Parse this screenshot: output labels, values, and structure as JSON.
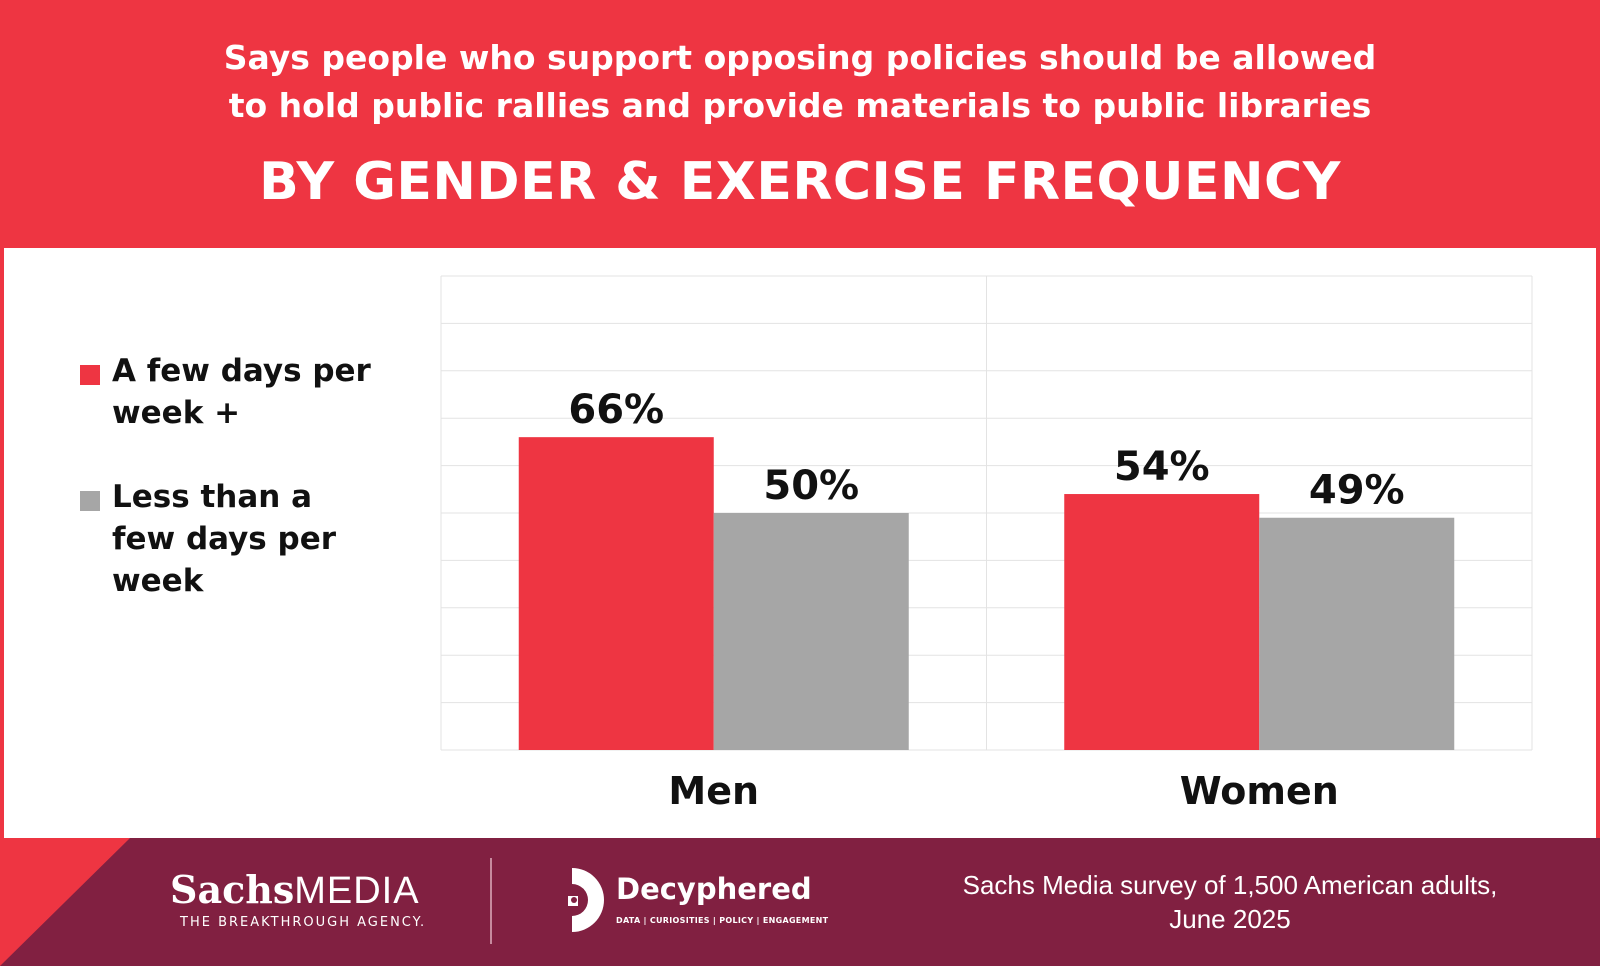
{
  "header": {
    "subtitle_line1": "Says people who support opposing policies should be allowed",
    "subtitle_line2": "to hold public rallies and provide materials to public libraries",
    "title": "BY GENDER & EXERCISE FREQUENCY"
  },
  "colors": {
    "accent_red": "#ee3542",
    "series_gray": "#a6a6a6",
    "footer_maroon": "#812041"
  },
  "legend": {
    "items": [
      {
        "label_lines": [
          "A few days per",
          "week +"
        ],
        "color": "#ee3542"
      },
      {
        "label_lines": [
          "Less than a",
          "few days per",
          "week"
        ],
        "color": "#a6a6a6"
      }
    ]
  },
  "chart_data": {
    "type": "bar",
    "categories": [
      "Men",
      "Women"
    ],
    "series": [
      {
        "name": "A few days per week +",
        "values": [
          66,
          54
        ],
        "labels": [
          "66%",
          "54%"
        ],
        "color": "#ee3542"
      },
      {
        "name": "Less than a few days per week",
        "values": [
          50,
          49
        ],
        "labels": [
          "50%",
          "49%"
        ],
        "color": "#a6a6a6"
      }
    ],
    "ylim": [
      0,
      100
    ],
    "grid": true,
    "legend_position": "left"
  },
  "footer": {
    "brand1_bold": "Sachs",
    "brand1_light": "MEDIA",
    "brand1_tagline": "THE BREAKTHROUGH AGENCY.",
    "brand2_name": "Decyphered",
    "brand2_tagline": "DATA | CURIOSITIES | POLICY | ENGAGEMENT",
    "source_line1": "Sachs Media survey of 1,500 American adults,",
    "source_line2": "June 2025"
  }
}
